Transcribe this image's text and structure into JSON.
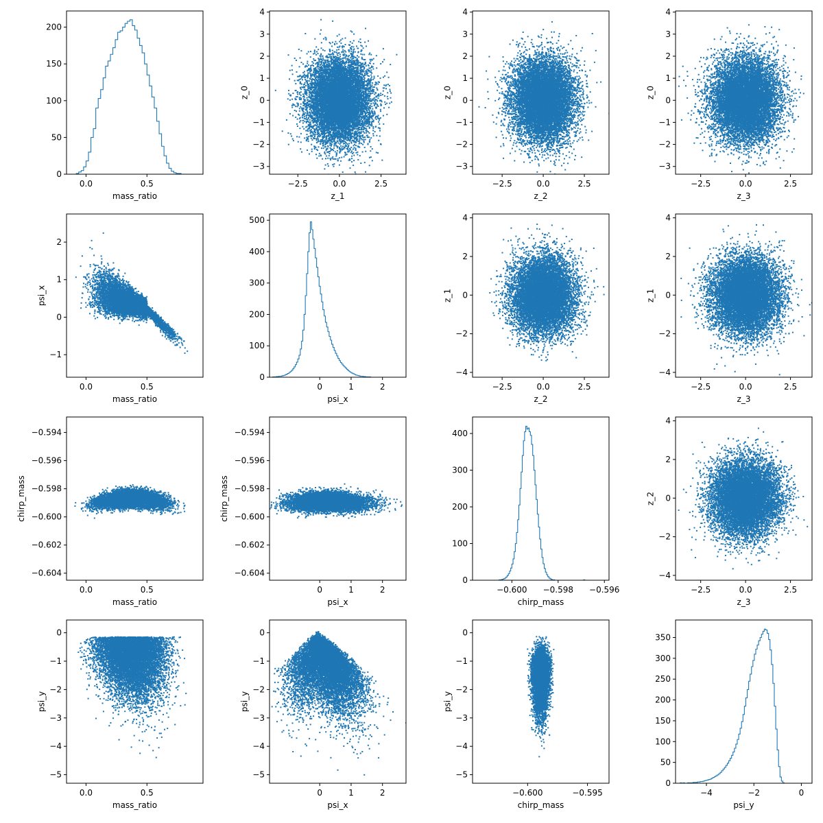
{
  "figure": {
    "type": "pairplot",
    "description": "4x4 grid of panels: histograms on the diagonal, scatter plots on the off-diagonal panels",
    "colors": {
      "series": "#1f77b4",
      "axes": "#000000",
      "background": "#ffffff"
    }
  },
  "chart_data": [
    {
      "type": "histogram",
      "xlabel": "mass_ratio",
      "ylabel": "",
      "xlim": [
        -0.16,
        0.96
      ],
      "ylim": [
        0,
        222
      ],
      "xticks": [
        {
          "v": 0,
          "l": "0.0"
        },
        {
          "v": 0.5,
          "l": "0.5"
        }
      ],
      "yticks": [
        {
          "v": 0,
          "l": "0"
        },
        {
          "v": 50,
          "l": "50"
        },
        {
          "v": 100,
          "l": "100"
        },
        {
          "v": 150,
          "l": "150"
        },
        {
          "v": 200,
          "l": "200"
        }
      ],
      "bin_start": -0.1,
      "bin_width": 0.02,
      "counts": [
        0,
        1,
        3,
        5,
        10,
        18,
        30,
        50,
        62,
        90,
        103,
        115,
        131,
        147,
        154,
        163,
        172,
        183,
        193,
        195,
        200,
        205,
        208,
        210,
        202,
        196,
        185,
        175,
        165,
        150,
        135,
        120,
        105,
        90,
        72,
        55,
        38,
        25,
        15,
        8,
        4,
        2,
        1,
        1,
        0,
        0,
        0,
        0,
        0,
        0
      ]
    },
    {
      "type": "scatter",
      "xlabel": "z_1",
      "ylabel": "z_0",
      "xlim": [
        -4.2,
        4.0
      ],
      "ylim": [
        -3.35,
        4.05
      ],
      "xticks": [
        {
          "v": -2.5,
          "l": "−2.5"
        },
        {
          "v": 0,
          "l": "0.0"
        },
        {
          "v": 2.5,
          "l": "2.5"
        }
      ],
      "yticks": [
        {
          "v": -3,
          "l": "−3"
        },
        {
          "v": -2,
          "l": "−2"
        },
        {
          "v": -1,
          "l": "−1"
        },
        {
          "v": 0,
          "l": "0"
        },
        {
          "v": 1,
          "l": "1"
        },
        {
          "v": 2,
          "l": "2"
        },
        {
          "v": 3,
          "l": "3"
        },
        {
          "v": 4,
          "l": "4"
        }
      ],
      "n_points": 10000,
      "gen": {
        "kind": "gauss",
        "mx": 0,
        "my": 0,
        "sx": 0.95,
        "sy": 0.95
      }
    },
    {
      "type": "scatter",
      "xlabel": "z_2",
      "ylabel": "z_0",
      "xlim": [
        -4.3,
        4.0
      ],
      "ylim": [
        -3.35,
        4.05
      ],
      "xticks": [
        {
          "v": -2.5,
          "l": "−2.5"
        },
        {
          "v": 0,
          "l": "0.0"
        },
        {
          "v": 2.5,
          "l": "2.5"
        }
      ],
      "yticks": [
        {
          "v": -3,
          "l": "−3"
        },
        {
          "v": -2,
          "l": "−2"
        },
        {
          "v": -1,
          "l": "−1"
        },
        {
          "v": 0,
          "l": "0"
        },
        {
          "v": 1,
          "l": "1"
        },
        {
          "v": 2,
          "l": "2"
        },
        {
          "v": 3,
          "l": "3"
        },
        {
          "v": 4,
          "l": "4"
        }
      ],
      "n_points": 10000,
      "gen": {
        "kind": "gauss",
        "mx": 0,
        "my": 0,
        "sx": 0.95,
        "sy": 0.95
      }
    },
    {
      "type": "scatter",
      "xlabel": "z_3",
      "ylabel": "z_0",
      "xlim": [
        -3.9,
        3.7
      ],
      "ylim": [
        -3.35,
        4.05
      ],
      "xticks": [
        {
          "v": -2.5,
          "l": "−2.5"
        },
        {
          "v": 0,
          "l": "0.0"
        },
        {
          "v": 2.5,
          "l": "2.5"
        }
      ],
      "yticks": [
        {
          "v": -3,
          "l": "−3"
        },
        {
          "v": -2,
          "l": "−2"
        },
        {
          "v": -1,
          "l": "−1"
        },
        {
          "v": 0,
          "l": "0"
        },
        {
          "v": 1,
          "l": "1"
        },
        {
          "v": 2,
          "l": "2"
        },
        {
          "v": 3,
          "l": "3"
        },
        {
          "v": 4,
          "l": "4"
        }
      ],
      "n_points": 10000,
      "gen": {
        "kind": "gauss",
        "mx": 0,
        "my": 0,
        "sx": 0.95,
        "sy": 0.95
      }
    },
    {
      "type": "scatter",
      "xlabel": "mass_ratio",
      "ylabel": "psi_x",
      "xlim": [
        -0.16,
        0.96
      ],
      "ylim": [
        -1.6,
        2.75
      ],
      "xticks": [
        {
          "v": 0,
          "l": "0.0"
        },
        {
          "v": 0.5,
          "l": "0.5"
        }
      ],
      "yticks": [
        {
          "v": -1,
          "l": "−1"
        },
        {
          "v": 0,
          "l": "0"
        },
        {
          "v": 1,
          "l": "1"
        },
        {
          "v": 2,
          "l": "2"
        }
      ],
      "n_points": 9000,
      "gen": {
        "kind": "mr_psix"
      }
    },
    {
      "type": "histogram",
      "xlabel": "psi_x",
      "ylabel": "",
      "xlim": [
        -1.6,
        2.75
      ],
      "ylim": [
        0,
        520
      ],
      "xticks": [
        {
          "v": 0,
          "l": "0"
        },
        {
          "v": 1,
          "l": "1"
        },
        {
          "v": 2,
          "l": "2"
        }
      ],
      "yticks": [
        {
          "v": 0,
          "l": "0"
        },
        {
          "v": 100,
          "l": "100"
        },
        {
          "v": 200,
          "l": "200"
        },
        {
          "v": 300,
          "l": "300"
        },
        {
          "v": 400,
          "l": "400"
        },
        {
          "v": 500,
          "l": "500"
        }
      ],
      "bin_start": -1.5,
      "bin_width": 0.04,
      "counts": [
        1,
        1,
        1,
        2,
        2,
        3,
        3,
        4,
        5,
        6,
        8,
        10,
        12,
        15,
        18,
        22,
        27,
        33,
        40,
        48,
        58,
        70,
        90,
        115,
        150,
        200,
        260,
        330,
        400,
        460,
        495,
        470,
        440,
        410,
        380,
        350,
        320,
        290,
        265,
        240,
        215,
        195,
        175,
        160,
        145,
        130,
        118,
        105,
        95,
        85,
        76,
        68,
        60,
        53,
        47,
        42,
        37,
        33,
        29,
        25,
        21,
        18,
        15,
        13,
        11,
        9,
        7,
        6,
        5,
        4,
        3,
        3,
        2,
        2,
        1,
        1,
        1,
        1,
        0,
        0,
        0,
        0,
        0,
        0,
        0,
        0,
        0,
        0,
        0,
        0,
        0,
        0,
        0,
        0,
        0,
        0,
        0,
        0,
        0,
        0
      ]
    },
    {
      "type": "scatter",
      "xlabel": "z_2",
      "ylabel": "z_1",
      "xlim": [
        -4.3,
        4.0
      ],
      "ylim": [
        -4.25,
        4.2
      ],
      "xticks": [
        {
          "v": -2.5,
          "l": "−2.5"
        },
        {
          "v": 0,
          "l": "0.0"
        },
        {
          "v": 2.5,
          "l": "2.5"
        }
      ],
      "yticks": [
        {
          "v": -4,
          "l": "−4"
        },
        {
          "v": -2,
          "l": "−2"
        },
        {
          "v": 0,
          "l": "0"
        },
        {
          "v": 2,
          "l": "2"
        },
        {
          "v": 4,
          "l": "4"
        }
      ],
      "n_points": 10000,
      "gen": {
        "kind": "gauss",
        "mx": 0,
        "my": 0,
        "sx": 0.95,
        "sy": 1.0
      }
    },
    {
      "type": "scatter",
      "xlabel": "z_3",
      "ylabel": "z_1",
      "xlim": [
        -3.9,
        3.7
      ],
      "ylim": [
        -4.25,
        4.2
      ],
      "xticks": [
        {
          "v": -2.5,
          "l": "−2.5"
        },
        {
          "v": 0,
          "l": "0.0"
        },
        {
          "v": 2.5,
          "l": "2.5"
        }
      ],
      "yticks": [
        {
          "v": -4,
          "l": "−4"
        },
        {
          "v": -2,
          "l": "−2"
        },
        {
          "v": 0,
          "l": "0"
        },
        {
          "v": 2,
          "l": "2"
        },
        {
          "v": 4,
          "l": "4"
        }
      ],
      "n_points": 10000,
      "gen": {
        "kind": "gauss",
        "mx": 0,
        "my": 0,
        "sx": 0.95,
        "sy": 1.0
      }
    },
    {
      "type": "scatter",
      "xlabel": "mass_ratio",
      "ylabel": "chirp_mass",
      "xlim": [
        -0.16,
        0.96
      ],
      "ylim": [
        -0.6045,
        -0.5929
      ],
      "xticks": [
        {
          "v": 0,
          "l": "0.0"
        },
        {
          "v": 0.5,
          "l": "0.5"
        }
      ],
      "yticks": [
        {
          "v": -0.604,
          "l": "−0.604"
        },
        {
          "v": -0.602,
          "l": "−0.602"
        },
        {
          "v": -0.6,
          "l": "−0.600"
        },
        {
          "v": -0.598,
          "l": "−0.598"
        },
        {
          "v": -0.596,
          "l": "−0.596"
        },
        {
          "v": -0.594,
          "l": "−0.594"
        }
      ],
      "n_points": 9000,
      "gen": {
        "kind": "mr_chirp"
      }
    },
    {
      "type": "scatter",
      "xlabel": "psi_x",
      "ylabel": "chirp_mass",
      "xlim": [
        -1.6,
        2.75
      ],
      "ylim": [
        -0.6045,
        -0.5929
      ],
      "xticks": [
        {
          "v": 0,
          "l": "0"
        },
        {
          "v": 1,
          "l": "1"
        },
        {
          "v": 2,
          "l": "2"
        }
      ],
      "yticks": [
        {
          "v": -0.604,
          "l": "−0.604"
        },
        {
          "v": -0.602,
          "l": "−0.602"
        },
        {
          "v": -0.6,
          "l": "−0.600"
        },
        {
          "v": -0.598,
          "l": "−0.598"
        },
        {
          "v": -0.596,
          "l": "−0.596"
        },
        {
          "v": -0.594,
          "l": "−0.594"
        }
      ],
      "n_points": 9000,
      "gen": {
        "kind": "psix_chirp"
      }
    },
    {
      "type": "histogram",
      "xlabel": "chirp_mass",
      "ylabel": "",
      "xlim": [
        -0.6017,
        -0.5958
      ],
      "ylim": [
        0,
        445
      ],
      "xticks": [
        {
          "v": -0.6,
          "l": "−0.600"
        },
        {
          "v": -0.598,
          "l": "−0.598"
        },
        {
          "v": -0.596,
          "l": "−0.596"
        }
      ],
      "yticks": [
        {
          "v": 0,
          "l": "0"
        },
        {
          "v": 100,
          "l": "100"
        },
        {
          "v": 200,
          "l": "200"
        },
        {
          "v": 300,
          "l": "300"
        },
        {
          "v": 400,
          "l": "400"
        }
      ],
      "bin_start": -0.6008,
      "bin_width": 5e-05,
      "counts": [
        0,
        0,
        0,
        0,
        0,
        1,
        1,
        2,
        3,
        4,
        6,
        9,
        13,
        18,
        25,
        33,
        44,
        58,
        78,
        100,
        130,
        165,
        205,
        250,
        295,
        340,
        380,
        405,
        420,
        412,
        415,
        405,
        395,
        370,
        340,
        300,
        260,
        220,
        180,
        145,
        112,
        85,
        62,
        45,
        32,
        22,
        15,
        10,
        6,
        4,
        2,
        1,
        1,
        0,
        0,
        0,
        0,
        0,
        0,
        0,
        0,
        0,
        0,
        0,
        0,
        0,
        0,
        0,
        0,
        0,
        0,
        0,
        0,
        0,
        0,
        0,
        0,
        0,
        1,
        0
      ]
    },
    {
      "type": "scatter",
      "xlabel": "z_3",
      "ylabel": "z_2",
      "xlim": [
        -3.9,
        3.7
      ],
      "ylim": [
        -4.25,
        4.2
      ],
      "xticks": [
        {
          "v": -2.5,
          "l": "−2.5"
        },
        {
          "v": 0,
          "l": "0.0"
        },
        {
          "v": 2.5,
          "l": "2.5"
        }
      ],
      "yticks": [
        {
          "v": -4,
          "l": "−4"
        },
        {
          "v": -2,
          "l": "−2"
        },
        {
          "v": 0,
          "l": "0"
        },
        {
          "v": 2,
          "l": "2"
        },
        {
          "v": 4,
          "l": "4"
        }
      ],
      "n_points": 10000,
      "gen": {
        "kind": "gauss",
        "mx": 0,
        "my": 0,
        "sx": 0.95,
        "sy": 1.0
      }
    },
    {
      "type": "scatter",
      "xlabel": "mass_ratio",
      "ylabel": "psi_y",
      "xlim": [
        -0.16,
        0.96
      ],
      "ylim": [
        -5.3,
        0.45
      ],
      "xticks": [
        {
          "v": 0,
          "l": "0.0"
        },
        {
          "v": 0.5,
          "l": "0.5"
        }
      ],
      "yticks": [
        {
          "v": -5,
          "l": "−5"
        },
        {
          "v": -4,
          "l": "−4"
        },
        {
          "v": -3,
          "l": "−3"
        },
        {
          "v": -2,
          "l": "−2"
        },
        {
          "v": -1,
          "l": "−1"
        },
        {
          "v": 0,
          "l": "0"
        }
      ],
      "n_points": 9000,
      "gen": {
        "kind": "mr_psiy"
      }
    },
    {
      "type": "scatter",
      "xlabel": "psi_x",
      "ylabel": "psi_y",
      "xlim": [
        -1.6,
        2.75
      ],
      "ylim": [
        -5.3,
        0.45
      ],
      "xticks": [
        {
          "v": 0,
          "l": "0"
        },
        {
          "v": 1,
          "l": "1"
        },
        {
          "v": 2,
          "l": "2"
        }
      ],
      "yticks": [
        {
          "v": -5,
          "l": "−5"
        },
        {
          "v": -4,
          "l": "−4"
        },
        {
          "v": -3,
          "l": "−3"
        },
        {
          "v": -2,
          "l": "−2"
        },
        {
          "v": -1,
          "l": "−1"
        },
        {
          "v": 0,
          "l": "0"
        }
      ],
      "n_points": 9000,
      "gen": {
        "kind": "psix_psiy"
      }
    },
    {
      "type": "scatter",
      "xlabel": "chirp_mass",
      "ylabel": "psi_y",
      "xlim": [
        -0.6046,
        -0.5932
      ],
      "ylim": [
        -5.3,
        0.45
      ],
      "xticks": [
        {
          "v": -0.6,
          "l": "−0.600"
        },
        {
          "v": -0.595,
          "l": "−0.595"
        }
      ],
      "yticks": [
        {
          "v": -5,
          "l": "−5"
        },
        {
          "v": -4,
          "l": "−4"
        },
        {
          "v": -3,
          "l": "−3"
        },
        {
          "v": -2,
          "l": "−2"
        },
        {
          "v": -1,
          "l": "−1"
        },
        {
          "v": 0,
          "l": "0"
        }
      ],
      "n_points": 9000,
      "gen": {
        "kind": "chirp_psiy"
      }
    },
    {
      "type": "histogram",
      "xlabel": "psi_y",
      "ylabel": "",
      "xlim": [
        -5.3,
        0.45
      ],
      "ylim": [
        0,
        392
      ],
      "xticks": [
        {
          "v": -4,
          "l": "−4"
        },
        {
          "v": -2,
          "l": "−2"
        },
        {
          "v": 0,
          "l": "0"
        }
      ],
      "yticks": [
        {
          "v": 0,
          "l": "0"
        },
        {
          "v": 50,
          "l": "50"
        },
        {
          "v": 100,
          "l": "100"
        },
        {
          "v": 150,
          "l": "150"
        },
        {
          "v": 200,
          "l": "200"
        },
        {
          "v": 250,
          "l": "250"
        },
        {
          "v": 300,
          "l": "300"
        },
        {
          "v": 350,
          "l": "350"
        }
      ],
      "bin_start": -5.1,
      "bin_width": 0.06,
      "counts": [
        1,
        0,
        1,
        0,
        0,
        1,
        1,
        1,
        1,
        2,
        2,
        2,
        3,
        3,
        4,
        4,
        5,
        6,
        7,
        8,
        9,
        10,
        12,
        14,
        16,
        18,
        20,
        23,
        26,
        30,
        34,
        38,
        43,
        48,
        54,
        60,
        67,
        75,
        84,
        94,
        105,
        118,
        132,
        148,
        165,
        185,
        205,
        225,
        245,
        262,
        280,
        295,
        310,
        322,
        332,
        342,
        350,
        358,
        365,
        370,
        368,
        360,
        345,
        320,
        285,
        240,
        185,
        130,
        80,
        40,
        15,
        5,
        1,
        0,
        0
      ]
    }
  ]
}
